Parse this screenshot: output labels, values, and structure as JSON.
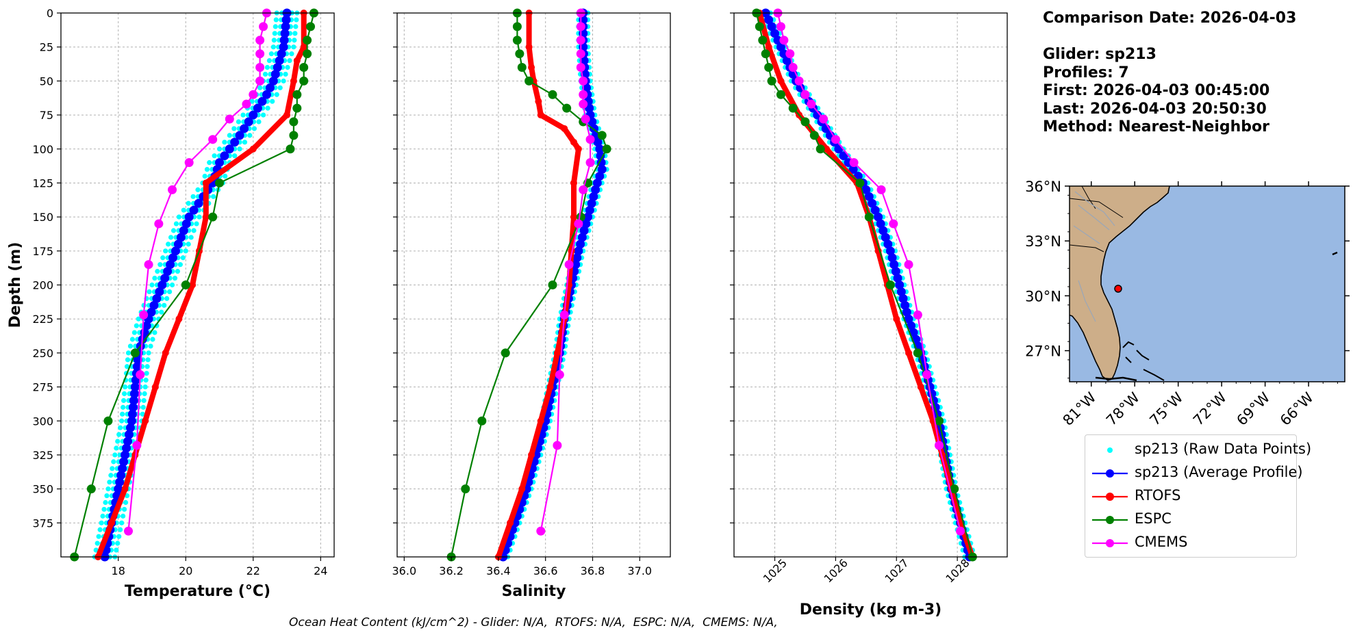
{
  "info": {
    "comparison_date": "Comparison Date: 2026-04-03",
    "glider": "Glider: sp213",
    "profiles": "Profiles: 7",
    "first": "First: 2026-04-03 00:45:00",
    "last": "Last: 2026-04-03 20:50:30",
    "method": "Method: Nearest-Neighbor"
  },
  "footer": "Ocean Heat Content (kJ/cm^2) - Glider: N/A,  RTOFS: N/A,  ESPC: N/A,  CMEMS: N/A,",
  "legend": [
    {
      "label": "sp213 (Raw Data Points)",
      "color": "#00ffff",
      "style": "dot"
    },
    {
      "label": "sp213 (Average Profile)",
      "color": "#0000ff",
      "style": "line-marker"
    },
    {
      "label": "RTOFS",
      "color": "#ff0000",
      "style": "line-marker"
    },
    {
      "label": "ESPC",
      "color": "#008000",
      "style": "line-marker"
    },
    {
      "label": "CMEMS",
      "color": "#ff00ff",
      "style": "line-marker"
    }
  ],
  "colors": {
    "raw": "#00ffff",
    "glider": "#0000ff",
    "rtofs": "#ff0000",
    "espc": "#008000",
    "cmems": "#ff00ff",
    "ocean": "#99b9e3",
    "land": "#cdae89"
  },
  "chart_data": [
    {
      "type": "line",
      "xlabel": "Temperature (°C)",
      "ylabel": "Depth (m)",
      "xlim": [
        16.3,
        24.4
      ],
      "ylim": [
        400,
        0
      ],
      "xticks": [
        18,
        20,
        22,
        24
      ],
      "yticks": [
        0,
        25,
        50,
        75,
        100,
        125,
        150,
        175,
        200,
        225,
        250,
        275,
        300,
        325,
        350,
        375
      ],
      "grid": true,
      "raw_offsets": [
        -0.3,
        -0.15,
        0.15,
        0.3
      ],
      "series": [
        {
          "name": "sp213 (Average Profile)",
          "key": "glider",
          "depth": [
            0,
            25,
            50,
            60,
            75,
            90,
            100,
            110,
            125,
            150,
            175,
            200,
            225,
            250,
            275,
            300,
            325,
            350,
            375,
            400
          ],
          "values": [
            23.0,
            22.9,
            22.6,
            22.4,
            22.0,
            21.6,
            21.3,
            21.0,
            20.8,
            20.1,
            19.7,
            19.3,
            18.9,
            18.6,
            18.5,
            18.4,
            18.2,
            18.0,
            17.8,
            17.6
          ]
        },
        {
          "name": "RTOFS",
          "key": "rtofs",
          "depth": [
            0,
            25,
            35,
            50,
            75,
            100,
            125,
            150,
            175,
            200,
            225,
            250,
            275,
            300,
            325,
            350,
            375,
            400
          ],
          "values": [
            23.5,
            23.5,
            23.3,
            23.2,
            23.0,
            22.0,
            20.6,
            20.6,
            20.4,
            20.2,
            19.8,
            19.4,
            19.1,
            18.8,
            18.5,
            18.2,
            17.8,
            17.4
          ]
        },
        {
          "name": "ESPC",
          "key": "espc",
          "depth": [
            0,
            10,
            20,
            30,
            40,
            50,
            60,
            70,
            80,
            90,
            100,
            125,
            150,
            200,
            250,
            300,
            350,
            400
          ],
          "values": [
            23.8,
            23.7,
            23.6,
            23.6,
            23.5,
            23.5,
            23.3,
            23.3,
            23.2,
            23.2,
            23.1,
            21.0,
            20.8,
            20.0,
            18.5,
            17.7,
            17.2,
            16.7
          ]
        },
        {
          "name": "CMEMS",
          "key": "cmems",
          "depth": [
            0,
            10,
            20,
            30,
            40,
            50,
            60,
            67,
            78,
            93,
            110,
            130,
            155,
            185,
            222,
            266,
            318,
            381
          ],
          "values": [
            22.4,
            22.3,
            22.2,
            22.2,
            22.2,
            22.2,
            22.0,
            21.8,
            21.3,
            20.8,
            20.1,
            19.6,
            19.2,
            18.9,
            18.75,
            18.65,
            18.55,
            18.3
          ]
        }
      ]
    },
    {
      "type": "line",
      "xlabel": "Salinity",
      "ylabel": "",
      "xlim": [
        35.97,
        37.13
      ],
      "ylim": [
        400,
        0
      ],
      "xticks": [
        "36.0",
        "36.2",
        "36.4",
        "36.6",
        "36.8",
        "37.0"
      ],
      "grid": true,
      "raw_offsets": [
        -0.02,
        -0.01,
        0.01,
        0.02
      ],
      "series": [
        {
          "name": "sp213 (Average Profile)",
          "key": "glider",
          "depth": [
            0,
            25,
            50,
            75,
            100,
            115,
            125,
            150,
            175,
            200,
            225,
            250,
            275,
            300,
            325,
            350,
            375,
            400
          ],
          "values": [
            36.76,
            36.76,
            36.77,
            36.79,
            36.83,
            36.84,
            36.82,
            36.78,
            36.74,
            36.71,
            36.68,
            36.66,
            36.63,
            36.6,
            36.56,
            36.52,
            36.47,
            36.42
          ]
        },
        {
          "name": "RTOFS",
          "key": "rtofs",
          "depth": [
            0,
            25,
            40,
            50,
            65,
            75,
            85,
            95,
            100,
            125,
            150,
            175,
            200,
            225,
            250,
            275,
            300,
            325,
            350,
            375,
            400
          ],
          "values": [
            36.53,
            36.53,
            36.54,
            36.55,
            36.57,
            36.58,
            36.68,
            36.72,
            36.74,
            36.72,
            36.72,
            36.71,
            36.7,
            36.68,
            36.65,
            36.62,
            36.58,
            36.54,
            36.5,
            36.45,
            36.4
          ]
        },
        {
          "name": "ESPC",
          "key": "espc",
          "depth": [
            0,
            10,
            20,
            30,
            40,
            50,
            60,
            70,
            80,
            90,
            100,
            125,
            150,
            200,
            250,
            300,
            350,
            400
          ],
          "values": [
            36.48,
            36.48,
            36.48,
            36.49,
            36.5,
            36.53,
            36.63,
            36.69,
            36.76,
            36.84,
            36.86,
            36.78,
            36.75,
            36.63,
            36.43,
            36.33,
            36.26,
            36.2
          ]
        },
        {
          "name": "CMEMS",
          "key": "cmems",
          "depth": [
            0,
            10,
            20,
            30,
            40,
            50,
            60,
            67,
            78,
            93,
            110,
            130,
            155,
            185,
            222,
            266,
            318,
            381
          ],
          "values": [
            36.75,
            36.75,
            36.75,
            36.75,
            36.75,
            36.76,
            36.76,
            36.76,
            36.77,
            36.79,
            36.79,
            36.76,
            36.74,
            36.7,
            36.68,
            36.66,
            36.65,
            36.58
          ]
        }
      ]
    },
    {
      "type": "line",
      "xlabel": "Density (kg m-3)",
      "ylabel": "",
      "xlim": [
        1024.33,
        1028.82
      ],
      "ylim": [
        400,
        0
      ],
      "xticks": [
        "1025",
        "1026",
        "1027",
        "1028"
      ],
      "grid": true,
      "raw_offsets": [
        -0.08,
        -0.04,
        0.04,
        0.08
      ],
      "series": [
        {
          "name": "sp213 (Average Profile)",
          "key": "glider",
          "depth": [
            0,
            25,
            50,
            75,
            100,
            125,
            150,
            175,
            200,
            225,
            250,
            275,
            300,
            325,
            350,
            375,
            400
          ],
          "values": [
            1024.85,
            1025.1,
            1025.35,
            1025.7,
            1026.05,
            1026.45,
            1026.7,
            1026.9,
            1027.05,
            1027.2,
            1027.4,
            1027.55,
            1027.7,
            1027.8,
            1027.9,
            1028.05,
            1028.2
          ]
        },
        {
          "name": "RTOFS",
          "key": "rtofs",
          "depth": [
            0,
            25,
            50,
            75,
            100,
            125,
            150,
            175,
            200,
            225,
            250,
            275,
            300,
            325,
            350,
            375,
            400
          ],
          "values": [
            1024.75,
            1024.9,
            1025.1,
            1025.4,
            1025.85,
            1026.35,
            1026.55,
            1026.7,
            1026.85,
            1027.0,
            1027.2,
            1027.4,
            1027.6,
            1027.75,
            1027.9,
            1028.05,
            1028.25
          ]
        },
        {
          "name": "ESPC",
          "key": "espc",
          "depth": [
            0,
            10,
            20,
            30,
            40,
            50,
            60,
            70,
            80,
            90,
            100,
            125,
            150,
            200,
            250,
            300,
            350,
            400
          ],
          "values": [
            1024.7,
            1024.75,
            1024.8,
            1024.85,
            1024.9,
            1024.95,
            1025.1,
            1025.3,
            1025.5,
            1025.65,
            1025.75,
            1026.4,
            1026.55,
            1026.9,
            1027.35,
            1027.7,
            1027.95,
            1028.25
          ]
        },
        {
          "name": "CMEMS",
          "key": "cmems",
          "depth": [
            0,
            10,
            20,
            30,
            40,
            50,
            60,
            67,
            78,
            93,
            110,
            130,
            155,
            185,
            222,
            266,
            318,
            381
          ],
          "values": [
            1025.05,
            1025.1,
            1025.15,
            1025.25,
            1025.3,
            1025.4,
            1025.5,
            1025.6,
            1025.8,
            1026.0,
            1026.3,
            1026.75,
            1026.95,
            1027.2,
            1027.35,
            1027.5,
            1027.7,
            1028.05
          ]
        }
      ]
    },
    {
      "type": "map",
      "lon_range": [
        -82.5,
        -63.5
      ],
      "lat_range": [
        25.3,
        36.0
      ],
      "lat_ticks": [
        "36°N",
        "33°N",
        "30°N",
        "27°N"
      ],
      "lon_ticks": [
        "81°W",
        "78°W",
        "75°W",
        "72°W",
        "69°W",
        "66°W"
      ],
      "glider_position": {
        "lon": -79.2,
        "lat": 30.5
      }
    }
  ]
}
